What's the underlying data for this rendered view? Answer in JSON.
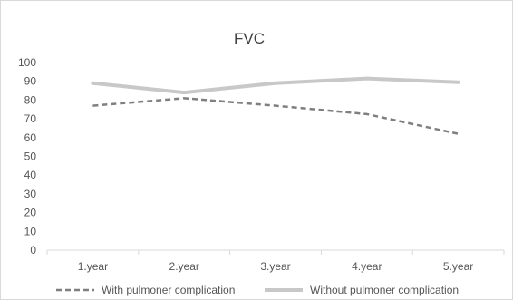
{
  "chart_data": {
    "type": "line",
    "title": "FVC",
    "xlabel": "",
    "ylabel": "",
    "categories": [
      "1.year",
      "2.year",
      "3.year",
      "4.year",
      "5.year"
    ],
    "ylim": [
      0,
      100
    ],
    "yticks": [
      0,
      10,
      20,
      30,
      40,
      50,
      60,
      70,
      80,
      90,
      100
    ],
    "grid": false,
    "legend_position": "bottom",
    "series": [
      {
        "name": "With pulmoner complication",
        "values": [
          77,
          81,
          77,
          72.5,
          62
        ],
        "color": "#7f7f7f",
        "style": "dashed"
      },
      {
        "name": "Without pulmoner complication",
        "values": [
          89,
          84,
          89,
          91.5,
          89.5
        ],
        "color": "#c8c8c8",
        "style": "solid"
      }
    ]
  }
}
